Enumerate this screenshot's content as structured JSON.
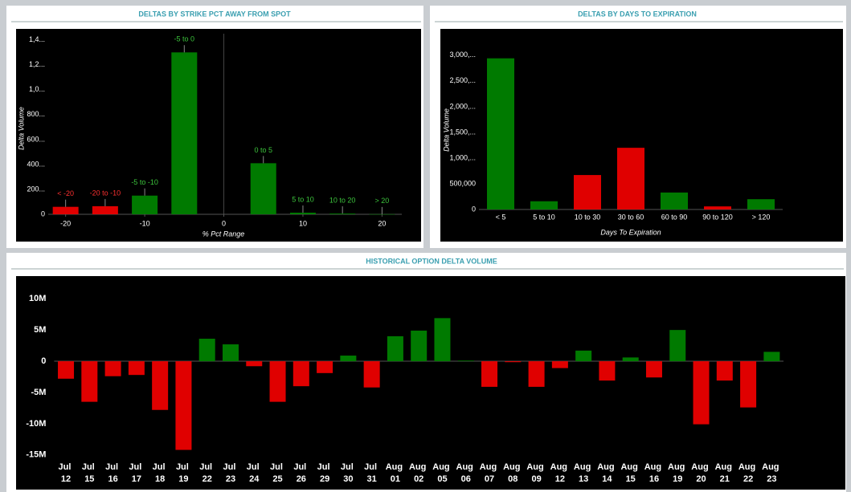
{
  "chart_data": [
    {
      "type": "bar",
      "title": "DELTAS BY STRIKE PCT AWAY FROM SPOT",
      "xlabel": "% Pct Range",
      "ylabel": "Delta Volume",
      "labels": [
        "< -20",
        "-20 to -10",
        "-5 to -10",
        "-5 to 0",
        "0 to 5",
        "5 to 10",
        "10 to 20",
        "> 20"
      ],
      "x": [
        -20,
        -15,
        -10,
        -5,
        5,
        10,
        15,
        20
      ],
      "values": [
        60,
        65,
        150,
        1300,
        410,
        13,
        6,
        1
      ],
      "colors": [
        "#e00000",
        "#e00000",
        "#007a00",
        "#007a00",
        "#007a00",
        "#007a00",
        "#007a00",
        "#007a00"
      ],
      "xlim": [
        -22.2,
        22.5
      ],
      "xticks": [
        -20,
        -10,
        0,
        10,
        20
      ],
      "ylim": [
        0,
        1450
      ],
      "yticks": [
        {
          "value": 1400,
          "label": "1,4..."
        },
        {
          "value": 1200,
          "label": "1,2..."
        },
        {
          "value": 1000,
          "label": "1,0..."
        },
        {
          "value": 800,
          "label": "800..."
        },
        {
          "value": 600,
          "label": "600..."
        },
        {
          "value": 400,
          "label": "400..."
        },
        {
          "value": 200,
          "label": "200..."
        },
        0
      ]
    },
    {
      "type": "bar",
      "title": "DELTAS BY DAYS TO EXPIRATION",
      "xlabel": "Days To Expiration",
      "ylabel": "Delta Volume",
      "categories": [
        "< 5",
        "5 to 10",
        "10 to 30",
        "30 to 60",
        "60 to 90",
        "90 to 120",
        "> 120"
      ],
      "values": [
        2940000,
        160000,
        670000,
        1200000,
        330000,
        60000,
        200000
      ],
      "colors": [
        "#007a00",
        "#007a00",
        "#e00000",
        "#e00000",
        "#007a00",
        "#e00000",
        "#007a00"
      ],
      "ylim": [
        0,
        3450000
      ],
      "yticks": [
        {
          "value": 3000000,
          "label": "3,000,..."
        },
        {
          "value": 2500000,
          "label": "2,500,..."
        },
        {
          "value": 2000000,
          "label": "2,000,..."
        },
        {
          "value": 1500000,
          "label": "1,500,..."
        },
        {
          "value": 1000000,
          "label": "1,000,..."
        },
        {
          "value": 500000,
          "label": "500,000"
        },
        0
      ]
    },
    {
      "type": "bar",
      "title": "HISTORICAL OPTION DELTA VOLUME",
      "categories": [
        "Jul 12",
        "Jul 15",
        "Jul 16",
        "Jul 17",
        "Jul 18",
        "Jul 19",
        "Jul 22",
        "Jul 23",
        "Jul 24",
        "Jul 25",
        "Jul 26",
        "Jul 29",
        "Jul 30",
        "Jul 31",
        "Aug 01",
        "Aug 02",
        "Aug 05",
        "Aug 06",
        "Aug 07",
        "Aug 08",
        "Aug 09",
        "Aug 12",
        "Aug 13",
        "Aug 14",
        "Aug 15",
        "Aug 16",
        "Aug 19",
        "Aug 20",
        "Aug 21",
        "Aug 22",
        "Aug 23"
      ],
      "values": [
        -2800000,
        -6500000,
        -2400000,
        -2200000,
        -7800000,
        -14200000,
        3600000,
        2700000,
        -800000,
        -6500000,
        -4000000,
        -1900000,
        900000,
        -4200000,
        4000000,
        4900000,
        6900000,
        100000,
        -4100000,
        -150000,
        -4100000,
        -1100000,
        1700000,
        -3100000,
        600000,
        -2600000,
        5000000,
        -10100000,
        -3100000,
        -7400000,
        1500000
      ],
      "positive_color": "#007a00",
      "negative_color": "#e00000",
      "ylim": [
        -18500000,
        13500000
      ],
      "yticks": [
        {
          "value": 10000000,
          "label": "10M"
        },
        {
          "value": 5000000,
          "label": "5M"
        },
        0,
        {
          "value": -5000000,
          "label": "-5M"
        },
        {
          "value": -10000000,
          "label": "-10M"
        },
        {
          "value": -15000000,
          "label": "-15M"
        }
      ]
    }
  ]
}
